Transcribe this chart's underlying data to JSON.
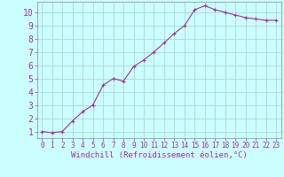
{
  "x": [
    0,
    1,
    2,
    3,
    4,
    5,
    6,
    7,
    8,
    9,
    10,
    11,
    12,
    13,
    14,
    15,
    16,
    17,
    18,
    19,
    20,
    21,
    22,
    23
  ],
  "y": [
    1.0,
    0.9,
    1.0,
    1.8,
    2.5,
    3.0,
    4.5,
    5.0,
    4.8,
    5.9,
    6.4,
    7.0,
    7.7,
    8.4,
    9.0,
    10.2,
    10.5,
    10.2,
    10.0,
    9.8,
    9.6,
    9.5,
    9.4,
    9.4
  ],
  "line_color": "#993399",
  "marker": "+",
  "marker_size": 3,
  "line_width": 0.8,
  "background_color": "#ccffff",
  "grid_color": "#aacccc",
  "xlabel": "Windchill (Refroidissement éolien,°C)",
  "xlabel_color": "#993399",
  "xlabel_fontsize": 6.5,
  "tick_color": "#993399",
  "tick_fontsize": 5.5,
  "ytick_fontsize": 7,
  "ylim": [
    0.5,
    10.8
  ],
  "xlim": [
    -0.5,
    23.5
  ],
  "yticks": [
    1,
    2,
    3,
    4,
    5,
    6,
    7,
    8,
    9,
    10
  ],
  "xticks": [
    0,
    1,
    2,
    3,
    4,
    5,
    6,
    7,
    8,
    9,
    10,
    11,
    12,
    13,
    14,
    15,
    16,
    17,
    18,
    19,
    20,
    21,
    22,
    23
  ]
}
